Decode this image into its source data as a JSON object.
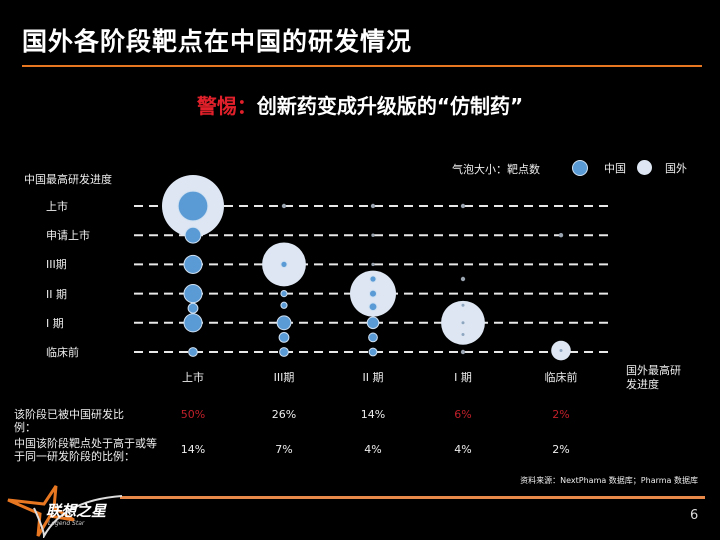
{
  "header": {
    "title": "国外各阶段靶点在中国的研发情况"
  },
  "subtitle": {
    "warn": "警惕：",
    "rest": "创新药变成升级版的“仿制药”"
  },
  "legend": {
    "size_label": "气泡大小：靶点数",
    "china": "中国",
    "foreign": "国外"
  },
  "colors": {
    "china": "#5b9bd5",
    "foreign": "#dde6f2",
    "accent": "#e87722",
    "red": "#c0202a"
  },
  "chart_data": {
    "type": "bubble",
    "y_axis_title": "中国最高研发进度",
    "x_axis_title": "国外最高研发进度",
    "y_categories": [
      "临床前",
      "I 期",
      "II 期",
      "III期",
      "申请上市",
      "上市"
    ],
    "x_categories": [
      "上市",
      "III期",
      "II 期",
      "I 期",
      "临床前"
    ],
    "size_meaning": "靶点数 (relative)",
    "series": [
      {
        "name": "国外",
        "points": [
          {
            "x": 0,
            "y": 5,
            "size": 100
          },
          {
            "x": 1,
            "y": 3,
            "size": 50
          },
          {
            "x": 2,
            "y": 2,
            "size": 55
          },
          {
            "x": 3,
            "y": 1,
            "size": 50
          },
          {
            "x": 4,
            "y": 0.05,
            "size": 10
          },
          {
            "x": 1,
            "y": 5,
            "size": 0.5
          },
          {
            "x": 2,
            "y": 5,
            "size": 0.5
          },
          {
            "x": 2,
            "y": 4,
            "size": 0.3
          },
          {
            "x": 2,
            "y": 3,
            "size": 0.3
          },
          {
            "x": 3,
            "y": 5,
            "size": 0.5
          },
          {
            "x": 3,
            "y": 2.5,
            "size": 0.5
          },
          {
            "x": 3,
            "y": 0,
            "size": 0.5
          },
          {
            "x": 4,
            "y": 4,
            "size": 0.5
          }
        ]
      },
      {
        "name": "中国",
        "points": [
          {
            "x": 0,
            "y": 5,
            "size": 23
          },
          {
            "x": 0,
            "y": 4,
            "size": 6.5
          },
          {
            "x": 0,
            "y": 3,
            "size": 8.5
          },
          {
            "x": 0,
            "y": 2,
            "size": 8.5
          },
          {
            "x": 0,
            "y": 1.5,
            "size": 2.5
          },
          {
            "x": 0,
            "y": 1,
            "size": 8.5
          },
          {
            "x": 0,
            "y": 0,
            "size": 2
          },
          {
            "x": 1,
            "y": 3,
            "size": 1
          },
          {
            "x": 1,
            "y": 2,
            "size": 1
          },
          {
            "x": 1,
            "y": 1.6,
            "size": 1
          },
          {
            "x": 1,
            "y": 1,
            "size": 5
          },
          {
            "x": 1,
            "y": 0.5,
            "size": 2.5
          },
          {
            "x": 1,
            "y": 0,
            "size": 2
          },
          {
            "x": 2,
            "y": 2.5,
            "size": 1
          },
          {
            "x": 2,
            "y": 2,
            "size": 1.3
          },
          {
            "x": 2,
            "y": 1.55,
            "size": 1.6
          },
          {
            "x": 2,
            "y": 1,
            "size": 3.5
          },
          {
            "x": 2,
            "y": 0.5,
            "size": 2
          },
          {
            "x": 2,
            "y": 0,
            "size": 1.6
          },
          {
            "x": 3,
            "y": 1.6,
            "size": 0.2
          },
          {
            "x": 3,
            "y": 1,
            "size": 0.2
          },
          {
            "x": 3,
            "y": 0.6,
            "size": 0.2
          },
          {
            "x": 4,
            "y": 0.05,
            "size": 0.2
          }
        ]
      }
    ]
  },
  "table": {
    "row1_label": "该阶段已被中国研发比例：",
    "row1_values": [
      "50%",
      "26%",
      "14%",
      "6%",
      "2%"
    ],
    "row1_highlight": [
      true,
      false,
      false,
      true,
      true
    ],
    "row2_label": "中国该阶段靶点处于高于或等于同一研发阶段的比例：",
    "row2_values": [
      "14%",
      "7%",
      "4%",
      "4%",
      "2%"
    ]
  },
  "source": "资料来源：NextPhama  数据库；Pharma  数据库",
  "logo": {
    "name": "联想之星",
    "sub": "Legend Star"
  },
  "page_number": "6"
}
